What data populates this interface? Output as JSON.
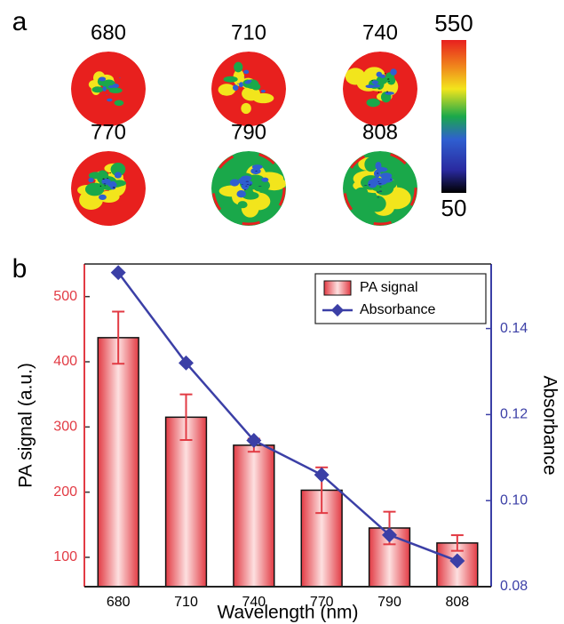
{
  "chart_data": [
    {
      "type": "heatmap-images",
      "panel_label": "a",
      "labels": [
        "680",
        "710",
        "740",
        "770",
        "790",
        "808"
      ],
      "colorbar_ticks": [
        550,
        50
      ]
    },
    {
      "type": "bar",
      "panel_label": "b",
      "x_label": "Wavelength (nm)",
      "y_label": "PA signal (a.u.)",
      "y2_label": "Absorbance",
      "categories": [
        "680",
        "710",
        "740",
        "770",
        "790",
        "808"
      ],
      "series": [
        {
          "name": "PA signal",
          "color": "#e23b44",
          "values": [
            437,
            315,
            272,
            203,
            145,
            122
          ],
          "errors": [
            40,
            35,
            10,
            35,
            25,
            12
          ]
        },
        {
          "name": "Absorbance",
          "color": "#3b3fa6",
          "axis": "y2",
          "values": [
            0.153,
            0.132,
            0.114,
            0.106,
            0.092,
            0.086
          ]
        }
      ],
      "ylim": [
        55,
        550
      ],
      "yticks": [
        100,
        200,
        300,
        400,
        500
      ],
      "y2lim": [
        0.08,
        0.155
      ],
      "y2ticks": [
        0.08,
        {
          "value": 0.1,
          "label": "0.10"
        },
        0.12,
        0.14
      ],
      "legend": "top-right"
    }
  ]
}
